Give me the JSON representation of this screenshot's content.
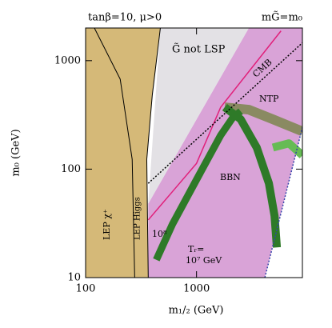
{
  "chart_data": {
    "type": "region",
    "title": "tanβ=10, μ>0",
    "subtitle": "mG̃=m₀",
    "xlabel": "m₁/₂ (GeV)",
    "ylabel": "m₀ (GeV)",
    "xscale": "log",
    "yscale": "log",
    "xlim": [
      100,
      9000
    ],
    "ylim": [
      10,
      2000
    ],
    "xticks": [
      100,
      1000
    ],
    "yticks": [
      10,
      100,
      1000
    ],
    "regions": [
      {
        "color": "#d9a3d7",
        "x": [
          2960,
          9000,
          9000,
          4130,
          367,
          367
        ],
        "y": [
          2000,
          2000,
          243,
          10,
          10,
          48
        ]
      },
      {
        "color": "#e3e1e5",
        "x": [
          472,
          2960,
          367
        ],
        "y": [
          2000,
          2000,
          48
        ]
      },
      {
        "color": "#d5b978",
        "x": [
          100,
          367,
          356,
          399,
          472,
          100
        ],
        "y": [
          10,
          10,
          123,
          480,
          2000,
          2000
        ]
      }
    ],
    "series": [
      {
        "color": "#000000",
        "style": "solid",
        "width": 1,
        "x": [
          277,
          263,
          205,
          120
        ],
        "y": [
          10,
          123,
          676,
          2000
        ]
      },
      {
        "color": "#8a8a62",
        "style": "solid",
        "width": 12,
        "x": [
          1794,
          2960,
          4880,
          9000
        ],
        "y": [
          372,
          353,
          288,
          223
        ]
      },
      {
        "color": "#66bb55",
        "style": "solid",
        "width": 10,
        "x": [
          4880,
          6810,
          9000
        ],
        "y": [
          158,
          173,
          134
        ]
      },
      {
        "color": "#2e7a28",
        "style": "solid",
        "width": 9,
        "x": [
          434,
          606,
          1000,
          1650,
          2120,
          2500
        ],
        "y": [
          14.6,
          31,
          80,
          205,
          298,
          341
        ]
      },
      {
        "color": "#2e7a28",
        "style": "solid",
        "width": 10,
        "x": [
          1794,
          2500,
          3490,
          4490,
          5050,
          5300
        ],
        "y": [
          372,
          288,
          158,
          74,
          37,
          19
        ]
      },
      {
        "color": "#e0207a",
        "style": "solid",
        "width": 1.5,
        "x": [
          367,
          606,
          1000,
          1650,
          5770
        ],
        "y": [
          34,
          62,
          113,
          372,
          1880
        ]
      },
      {
        "color": "#000000",
        "style": "dotted",
        "width": 1.5,
        "x": [
          367,
          9000
        ],
        "y": [
          74,
          1460
        ]
      },
      {
        "color": "#3344aa",
        "style": "dotted",
        "width": 1.5,
        "x": [
          4130,
          9000
        ],
        "y": [
          10,
          243
        ]
      }
    ],
    "annotations": [
      "G̃ not LSP",
      "CMB",
      "NTP",
      "BBN",
      "10⁸",
      "Tᵣ=",
      "10⁷ GeV",
      "LEP χ⁺",
      "LEP Higgs"
    ]
  }
}
